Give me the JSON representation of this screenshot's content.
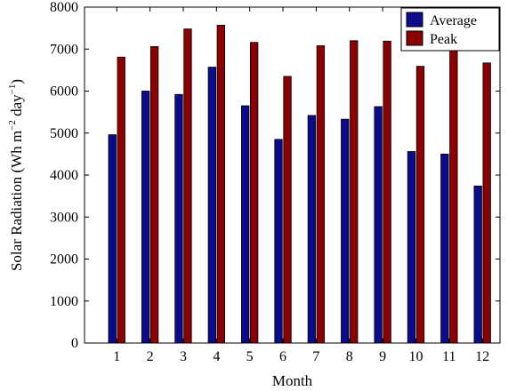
{
  "chart_data": {
    "type": "bar",
    "xlabel": "Month",
    "ylabel_parts": [
      "Solar Radiation (Wh m",
      "−2",
      " day",
      "−1",
      ")"
    ],
    "categories": [
      "1",
      "2",
      "3",
      "4",
      "5",
      "6",
      "7",
      "8",
      "9",
      "10",
      "11",
      "12"
    ],
    "series": [
      {
        "name": "Average",
        "color": "#0b0b8c",
        "values": [
          4960,
          6000,
          5920,
          6570,
          5650,
          4850,
          5420,
          5330,
          5630,
          4560,
          4500,
          3740
        ]
      },
      {
        "name": "Peak",
        "color": "#8b0000",
        "values": [
          6810,
          7060,
          7480,
          7570,
          7160,
          6350,
          7080,
          7200,
          7190,
          6590,
          7190,
          6670
        ]
      }
    ],
    "ylim": [
      0,
      8000
    ],
    "yticks": [
      0,
      1000,
      2000,
      3000,
      4000,
      5000,
      6000,
      7000,
      8000
    ],
    "grid": false,
    "legend_position": "top-right"
  }
}
